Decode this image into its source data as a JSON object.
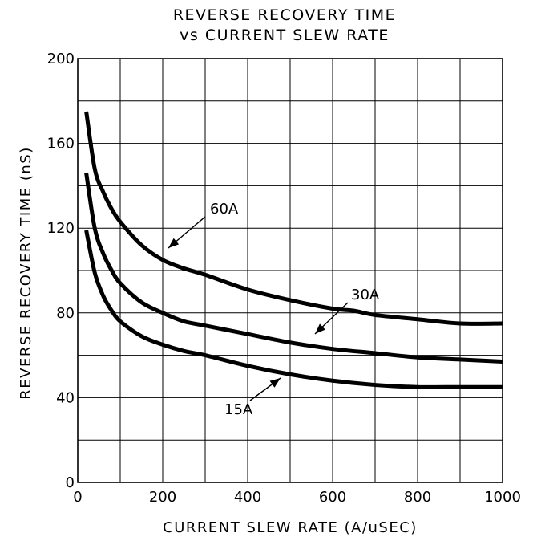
{
  "chart_data": {
    "type": "line",
    "title": [
      "REVERSE RECOVERY TIME",
      "vs CURRENT SLEW RATE"
    ],
    "xlabel": "CURRENT SLEW RATE (A/uSEC)",
    "ylabel": "REVERSE RECOVERY TIME (nS)",
    "xlim": [
      0,
      1000
    ],
    "ylim": [
      0,
      200
    ],
    "xticks": [
      0,
      200,
      400,
      600,
      800,
      1000
    ],
    "yticks": [
      0,
      40,
      80,
      120,
      160,
      200
    ],
    "x_tick_labels": [
      "0",
      "200",
      "400",
      "600",
      "800",
      "1000"
    ],
    "y_tick_labels": [
      "0",
      "40",
      "80",
      "120",
      "160",
      "200"
    ],
    "grid": true,
    "grid_x_step": 100,
    "grid_y_step": 20,
    "legend": "none",
    "series": [
      {
        "name": "60A",
        "x": [
          20,
          40,
          60,
          80,
          100,
          150,
          200,
          250,
          300,
          400,
          500,
          600,
          650,
          700,
          800,
          900,
          1000
        ],
        "y": [
          175,
          148,
          137,
          129,
          123,
          112,
          105,
          101,
          98,
          91,
          86,
          82,
          81,
          79,
          77,
          75,
          75
        ]
      },
      {
        "name": "30A",
        "x": [
          20,
          40,
          60,
          80,
          100,
          150,
          200,
          250,
          300,
          400,
          500,
          600,
          700,
          800,
          900,
          1000
        ],
        "y": [
          146,
          120,
          108,
          100,
          94,
          85,
          80,
          76,
          74,
          70,
          66,
          63,
          61,
          59,
          58,
          57
        ]
      },
      {
        "name": "15A",
        "x": [
          20,
          40,
          60,
          80,
          100,
          150,
          200,
          250,
          300,
          400,
          500,
          600,
          700,
          800,
          900,
          1000
        ],
        "y": [
          119,
          99,
          88,
          81,
          76,
          69,
          65,
          62,
          60,
          55,
          51,
          48,
          46,
          45,
          45,
          45
        ]
      }
    ],
    "annotations": [
      {
        "text": "60A",
        "series": "60A"
      },
      {
        "text": "30A",
        "series": "30A"
      },
      {
        "text": "15A",
        "series": "15A"
      }
    ]
  }
}
